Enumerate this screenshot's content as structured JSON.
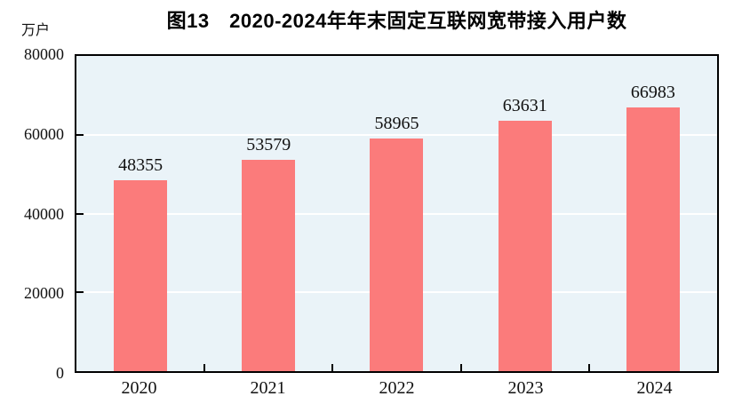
{
  "page": {
    "background": "#ffffff"
  },
  "chart_data": {
    "type": "bar",
    "title": "图13　2020-2024年年末固定互联网宽带接入用户数",
    "unit_label": "万户",
    "categories": [
      "2020",
      "2021",
      "2022",
      "2023",
      "2024"
    ],
    "values": [
      48355,
      53579,
      58965,
      63631,
      66983
    ],
    "value_labels": [
      "48355",
      "53579",
      "58965",
      "63631",
      "66983"
    ],
    "xlabel": "",
    "ylabel": "万户",
    "ylim": [
      0,
      80000
    ],
    "yticks": [
      0,
      20000,
      40000,
      60000,
      80000
    ],
    "ytick_labels": [
      "0",
      "20000",
      "40000",
      "60000",
      "80000"
    ],
    "grid": true,
    "gridline_values": [
      20000,
      40000,
      60000
    ],
    "legend_position": "none"
  },
  "colors": {
    "bar_fill": "#FB7B7B",
    "plot_background": "#EAF3F8",
    "gridline": "#FFFFFF",
    "axis_frame": "#000000",
    "text": "#111111",
    "page_background": "#FFFFFF"
  }
}
